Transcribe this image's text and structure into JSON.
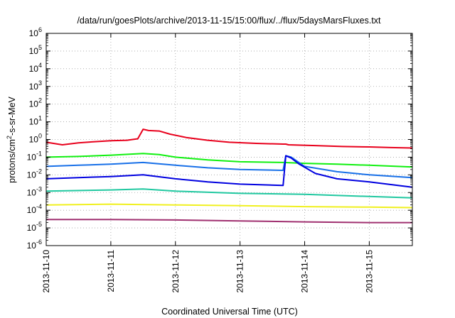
{
  "chart_data": {
    "type": "line",
    "title": "/data/run/goesPlots/archive/2013-11-15/15:00/flux/../flux/5daysMarsFluxes.txt",
    "xlabel": "Coordinated Universal Time (UTC)",
    "ylabel_parts": {
      "pre": "protons/cm",
      "sup": "2",
      "post": "-s-sr-MeV"
    },
    "yscale": "log",
    "ylim": [
      1e-06,
      1000000.0
    ],
    "xlim": [
      "2013-11-10 00:00",
      "2013-11-15 16:00"
    ],
    "grid": true,
    "legend": "none",
    "x_ticks": [
      {
        "label": "2013-11-10",
        "t": "2013-11-10 00:00"
      },
      {
        "label": "2013-11-11",
        "t": "2013-11-11 00:00"
      },
      {
        "label": "2013-11-12",
        "t": "2013-11-12 00:00"
      },
      {
        "label": "2013-11-13",
        "t": "2013-11-13 00:00"
      },
      {
        "label": "2013-11-14",
        "t": "2013-11-14 00:00"
      },
      {
        "label": "2013-11-15",
        "t": "2013-11-15 00:00"
      }
    ],
    "y_ticks": [
      {
        "base": "10",
        "exp": "-6",
        "value": 1e-06
      },
      {
        "base": "10",
        "exp": "-5",
        "value": 1e-05
      },
      {
        "base": "10",
        "exp": "-4",
        "value": 0.0001
      },
      {
        "base": "10",
        "exp": "-3",
        "value": 0.001
      },
      {
        "base": "10",
        "exp": "-2",
        "value": 0.01
      },
      {
        "base": "10",
        "exp": "-1",
        "value": 0.1
      },
      {
        "base": "10",
        "exp": "0",
        "value": 1
      },
      {
        "base": "10",
        "exp": "1",
        "value": 10
      },
      {
        "base": "10",
        "exp": "2",
        "value": 100
      },
      {
        "base": "10",
        "exp": "3",
        "value": 1000
      },
      {
        "base": "10",
        "exp": "4",
        "value": 10000
      },
      {
        "base": "10",
        "exp": "5",
        "value": 100000
      },
      {
        "base": "10",
        "exp": "6",
        "value": 1000000
      }
    ],
    "series": [
      {
        "color": "#e8001c",
        "width": 2,
        "points": [
          [
            "2013-11-10 00:00",
            0.7
          ],
          [
            "2013-11-10 06:00",
            0.5
          ],
          [
            "2013-11-10 12:00",
            0.65
          ],
          [
            "2013-11-10 18:00",
            0.75
          ],
          [
            "2013-11-11 00:00",
            0.85
          ],
          [
            "2013-11-11 06:00",
            0.9
          ],
          [
            "2013-11-11 10:00",
            1.1
          ],
          [
            "2013-11-11 12:00",
            3.8
          ],
          [
            "2013-11-11 14:00",
            3.2
          ],
          [
            "2013-11-11 18:00",
            3.0
          ],
          [
            "2013-11-11 22:00",
            2.0
          ],
          [
            "2013-11-12 04:00",
            1.3
          ],
          [
            "2013-11-12 12:00",
            0.9
          ],
          [
            "2013-11-12 20:00",
            0.7
          ],
          [
            "2013-11-13 06:00",
            0.6
          ],
          [
            "2013-11-13 16:00",
            0.55
          ],
          [
            "2013-11-13 17:00",
            0.55
          ],
          [
            "2013-11-13 18:00",
            0.5
          ],
          [
            "2013-11-14 04:00",
            0.45
          ],
          [
            "2013-11-14 14:00",
            0.4
          ],
          [
            "2013-11-15 00:00",
            0.38
          ],
          [
            "2013-11-15 08:00",
            0.35
          ],
          [
            "2013-11-15 16:00",
            0.33
          ]
        ]
      },
      {
        "color": "#10f010",
        "width": 2,
        "points": [
          [
            "2013-11-10 00:00",
            0.1
          ],
          [
            "2013-11-10 12:00",
            0.11
          ],
          [
            "2013-11-11 00:00",
            0.13
          ],
          [
            "2013-11-11 12:00",
            0.16
          ],
          [
            "2013-11-11 18:00",
            0.14
          ],
          [
            "2013-11-12 00:00",
            0.1
          ],
          [
            "2013-11-12 12:00",
            0.07
          ],
          [
            "2013-11-13 00:00",
            0.055
          ],
          [
            "2013-11-13 16:00",
            0.05
          ],
          [
            "2013-11-14 00:00",
            0.045
          ],
          [
            "2013-11-14 12:00",
            0.04
          ],
          [
            "2013-11-15 00:00",
            0.035
          ],
          [
            "2013-11-15 16:00",
            0.028
          ]
        ]
      },
      {
        "color": "#1870e8",
        "width": 2,
        "points": [
          [
            "2013-11-10 00:00",
            0.03
          ],
          [
            "2013-11-10 12:00",
            0.035
          ],
          [
            "2013-11-11 00:00",
            0.04
          ],
          [
            "2013-11-11 12:00",
            0.05
          ],
          [
            "2013-11-12 00:00",
            0.035
          ],
          [
            "2013-11-12 12:00",
            0.025
          ],
          [
            "2013-11-13 00:00",
            0.02
          ],
          [
            "2013-11-13 16:00",
            0.018
          ],
          [
            "2013-11-13 17:00",
            0.12
          ],
          [
            "2013-11-13 19:00",
            0.1
          ],
          [
            "2013-11-14 00:00",
            0.03
          ],
          [
            "2013-11-14 12:00",
            0.015
          ],
          [
            "2013-11-15 00:00",
            0.01
          ],
          [
            "2013-11-15 16:00",
            0.007
          ]
        ]
      },
      {
        "color": "#0000e0",
        "width": 2,
        "points": [
          [
            "2013-11-10 00:00",
            0.006
          ],
          [
            "2013-11-10 12:00",
            0.007
          ],
          [
            "2013-11-11 00:00",
            0.008
          ],
          [
            "2013-11-11 12:00",
            0.01
          ],
          [
            "2013-11-12 00:00",
            0.006
          ],
          [
            "2013-11-12 12:00",
            0.004
          ],
          [
            "2013-11-13 00:00",
            0.003
          ],
          [
            "2013-11-13 16:00",
            0.0025
          ],
          [
            "2013-11-13 17:00",
            0.12
          ],
          [
            "2013-11-13 19:00",
            0.09
          ],
          [
            "2013-11-13 22:00",
            0.04
          ],
          [
            "2013-11-14 04:00",
            0.012
          ],
          [
            "2013-11-14 12:00",
            0.006
          ],
          [
            "2013-11-15 00:00",
            0.004
          ],
          [
            "2013-11-15 16:00",
            0.002
          ]
        ]
      },
      {
        "color": "#20c8a0",
        "width": 2,
        "points": [
          [
            "2013-11-10 00:00",
            0.0012
          ],
          [
            "2013-11-11 00:00",
            0.0014
          ],
          [
            "2013-11-11 12:00",
            0.0016
          ],
          [
            "2013-11-12 00:00",
            0.0012
          ],
          [
            "2013-11-13 00:00",
            0.0009
          ],
          [
            "2013-11-14 00:00",
            0.0008
          ],
          [
            "2013-11-15 00:00",
            0.0006
          ],
          [
            "2013-11-15 16:00",
            0.0005
          ]
        ]
      },
      {
        "color": "#f0f020",
        "width": 2,
        "points": [
          [
            "2013-11-10 00:00",
            0.0002
          ],
          [
            "2013-11-11 00:00",
            0.00022
          ],
          [
            "2013-11-12 00:00",
            0.0002
          ],
          [
            "2013-11-13 00:00",
            0.00018
          ],
          [
            "2013-11-14 00:00",
            0.00016
          ],
          [
            "2013-11-15 00:00",
            0.00015
          ],
          [
            "2013-11-15 16:00",
            0.00014
          ]
        ]
      },
      {
        "color": "#a03070",
        "width": 2,
        "points": [
          [
            "2013-11-10 00:00",
            3e-05
          ],
          [
            "2013-11-11 00:00",
            3e-05
          ],
          [
            "2013-11-12 00:00",
            2.8e-05
          ],
          [
            "2013-11-13 00:00",
            2.5e-05
          ],
          [
            "2013-11-14 00:00",
            2.2e-05
          ],
          [
            "2013-11-15 00:00",
            2e-05
          ],
          [
            "2013-11-15 16:00",
            2e-05
          ]
        ]
      }
    ]
  }
}
